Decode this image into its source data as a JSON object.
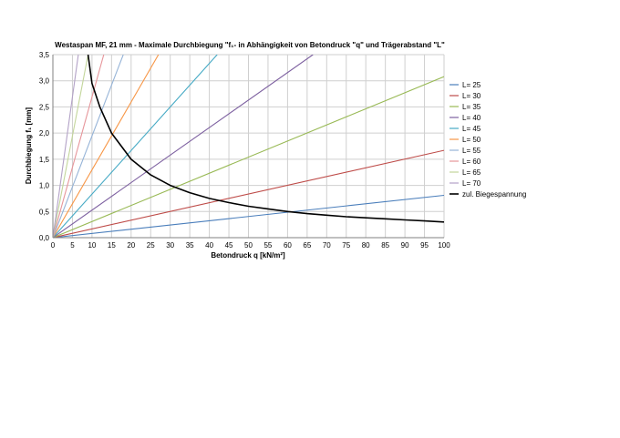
{
  "chart_data": {
    "type": "line",
    "title": "Westaspan MF, 21 mm - Maximale Durchbiegung  \"f₁- in Abhängigkeit von Betondruck \"q\" und Trägerabstand \"L\"",
    "xlabel": "Betondruck q [kN/m²]",
    "ylabel": "Durchbiegung  f₁ [mm]",
    "xlim": [
      0,
      100
    ],
    "ylim": [
      0,
      3.5
    ],
    "x_ticks": [
      "0",
      "5",
      "10",
      "15",
      "20",
      "25",
      "30",
      "35",
      "40",
      "45",
      "50",
      "55",
      "60",
      "65",
      "70",
      "75",
      "80",
      "85",
      "90",
      "95",
      "100"
    ],
    "y_ticks": [
      "0,0",
      "0,5",
      "1,0",
      "1,5",
      "2,0",
      "2,5",
      "3,0",
      "3,5"
    ],
    "grid": true,
    "legend_position": "right",
    "series": [
      {
        "name": "L= 25",
        "color": "#4a7ebb",
        "x": [
          0,
          100
        ],
        "y": [
          0,
          0.81
        ]
      },
      {
        "name": "L= 30",
        "color": "#be4b48",
        "x": [
          0,
          100
        ],
        "y": [
          0,
          1.67
        ]
      },
      {
        "name": "L= 35",
        "color": "#98b954",
        "x": [
          0,
          100
        ],
        "y": [
          0,
          3.08
        ]
      },
      {
        "name": "L= 40",
        "color": "#7d60a0",
        "x": [
          0,
          66.5
        ],
        "y": [
          0,
          3.5
        ]
      },
      {
        "name": "L= 45",
        "color": "#46aac5",
        "x": [
          0,
          42
        ],
        "y": [
          0,
          3.5
        ]
      },
      {
        "name": "L= 50",
        "color": "#f79646",
        "x": [
          0,
          27
        ],
        "y": [
          0,
          3.5
        ]
      },
      {
        "name": "L= 55",
        "color": "#95b3d7",
        "x": [
          0,
          18
        ],
        "y": [
          0,
          3.5
        ]
      },
      {
        "name": "L= 60",
        "color": "#e6959a",
        "x": [
          0,
          13
        ],
        "y": [
          0,
          3.5
        ]
      },
      {
        "name": "L= 65",
        "color": "#c3d69b",
        "x": [
          0,
          9
        ],
        "y": [
          0,
          3.5
        ]
      },
      {
        "name": "L= 70",
        "color": "#b3a2c7",
        "x": [
          0,
          6.5
        ],
        "y": [
          0,
          3.5
        ]
      },
      {
        "name": "zul. Biegespannung",
        "color": "#000000",
        "x": [
          9,
          10,
          12,
          15,
          20,
          25,
          30,
          35,
          40,
          45,
          50,
          55,
          60,
          65,
          70,
          75,
          80,
          85,
          90,
          95,
          100
        ],
        "y": [
          3.5,
          2.95,
          2.5,
          2.0,
          1.5,
          1.2,
          1.0,
          0.86,
          0.75,
          0.67,
          0.6,
          0.55,
          0.5,
          0.46,
          0.43,
          0.4,
          0.38,
          0.36,
          0.34,
          0.32,
          0.3
        ]
      }
    ]
  }
}
